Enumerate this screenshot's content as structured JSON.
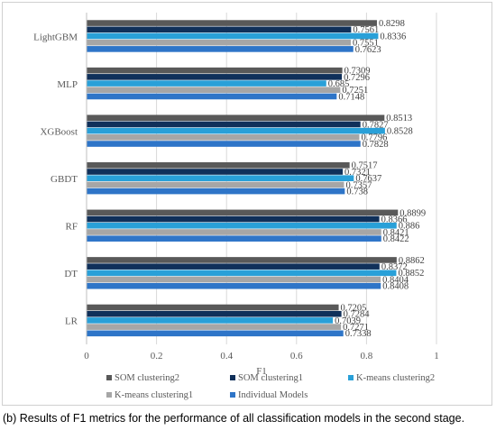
{
  "caption": {
    "tag": "(b)",
    "text": "Results of F1 metrics for the performance of all classification models in the second stage."
  },
  "chart_data": {
    "type": "bar",
    "orientation": "horizontal",
    "xlabel": "F1",
    "xlim": [
      0,
      1
    ],
    "xticks": [
      "0",
      "0.2",
      "0.4",
      "0.6",
      "0.8",
      "1"
    ],
    "grid": "vertical gridlines",
    "legend_position": "bottom",
    "categories": [
      "LightGBM",
      "MLP",
      "XGBoost",
      "GBDT",
      "RF",
      "DT",
      "LR"
    ],
    "series": [
      {
        "name": "SOM clustering2",
        "color": "#595959",
        "values": [
          0.8298,
          0.7309,
          0.8513,
          0.7517,
          0.8899,
          0.8862,
          0.7205
        ]
      },
      {
        "name": "SOM clustering1",
        "color": "#10305a",
        "values": [
          0.7561,
          0.7296,
          0.7827,
          0.7321,
          0.8366,
          0.8372,
          0.7284
        ]
      },
      {
        "name": "K-means clustering2",
        "color": "#29a0d8",
        "values": [
          0.8336,
          0.685,
          0.8528,
          0.7637,
          0.886,
          0.8852,
          0.7039
        ]
      },
      {
        "name": "K-means clustering1",
        "color": "#a6a6a6",
        "values": [
          0.7551,
          0.7251,
          0.7796,
          0.7357,
          0.8421,
          0.8404,
          0.7271
        ]
      },
      {
        "name": "Individual Models",
        "color": "#2e75c8",
        "values": [
          0.7623,
          0.7148,
          0.7828,
          0.738,
          0.8422,
          0.8408,
          0.7338
        ]
      }
    ],
    "data_labels": [
      [
        "0.8298",
        "0.7561",
        "0.8336",
        "0.7551",
        "0.7623"
      ],
      [
        "0.7309",
        "0.7296",
        "0.685",
        "0.7251",
        "0.7148"
      ],
      [
        "0.8513",
        "0.7827",
        "0.8528",
        "0.7796",
        "0.7828"
      ],
      [
        "0.7517",
        "0.7321",
        "0.7637",
        "0.7357",
        "0.738"
      ],
      [
        "0.8899",
        "0.8366",
        "0.886",
        "0.8421",
        "0.8422"
      ],
      [
        "0.8862",
        "0.8372",
        "0.8852",
        "0.8404",
        "0.8408"
      ],
      [
        "0.7205",
        "0.7284",
        "0.7039",
        "0.7271",
        "0.7338"
      ]
    ]
  }
}
